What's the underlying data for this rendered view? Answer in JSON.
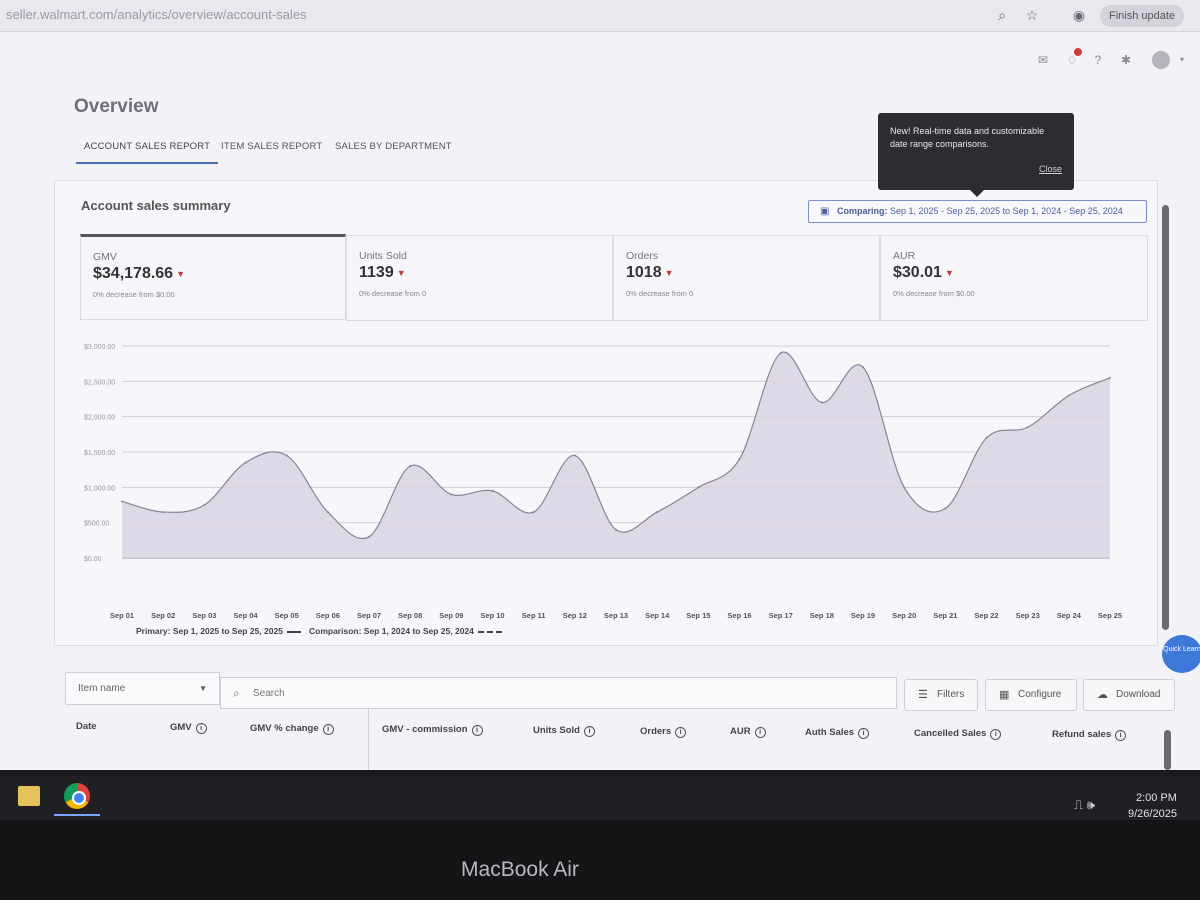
{
  "browser": {
    "url": "seller.walmart.com/analytics/overview/account-sales",
    "finish_update": "Finish update"
  },
  "page": {
    "title": "Overview",
    "tabs": [
      "ACCOUNT SALES REPORT",
      "ITEM SALES REPORT",
      "SALES BY DEPARTMENT"
    ]
  },
  "tooltip": {
    "text": "New! Real-time data and customizable date range comparisons.",
    "close": "Close"
  },
  "summary": {
    "title": "Account sales summary",
    "comparing_label": "Comparing:",
    "comparing_range": "Sep 1, 2025 - Sep 25, 2025",
    "to": "to",
    "comparison_range": "Sep 1, 2024 - Sep 25, 2024"
  },
  "kpis": [
    {
      "label": "GMV",
      "value": "$34,178.66",
      "note": "0% decrease from $0.00"
    },
    {
      "label": "Units Sold",
      "value": "1139",
      "note": "0% decrease from 0"
    },
    {
      "label": "Orders",
      "value": "1018",
      "note": "0% decrease from 0"
    },
    {
      "label": "AUR",
      "value": "$30.01",
      "note": "0% decrease from $0.00"
    }
  ],
  "chart_data": {
    "type": "area",
    "categories": [
      "Sep 01",
      "Sep 02",
      "Sep 03",
      "Sep 04",
      "Sep 05",
      "Sep 06",
      "Sep 07",
      "Sep 08",
      "Sep 09",
      "Sep 10",
      "Sep 11",
      "Sep 12",
      "Sep 13",
      "Sep 14",
      "Sep 15",
      "Sep 16",
      "Sep 17",
      "Sep 18",
      "Sep 19",
      "Sep 20",
      "Sep 21",
      "Sep 22",
      "Sep 23",
      "Sep 24",
      "Sep 25"
    ],
    "y_ticks": [
      "$3,000.00",
      "$2,500.00",
      "$2,000.00",
      "$1,500.00",
      "$1,000.00",
      "$500.00",
      "$0.00"
    ],
    "ylim": [
      0,
      3000
    ],
    "series": [
      {
        "name": "Primary: Sep 1, 2025 to Sep 25, 2025",
        "values": [
          800,
          650,
          750,
          1350,
          1450,
          650,
          300,
          1300,
          900,
          950,
          650,
          1450,
          400,
          650,
          1000,
          1400,
          2900,
          2200,
          2700,
          1000,
          700,
          1700,
          1850,
          2300,
          2550
        ]
      }
    ],
    "legend": {
      "primary": "Primary: Sep 1, 2025 to Sep 25, 2025",
      "comparison": "Comparison: Sep 1, 2024 to Sep 25, 2024"
    },
    "grid": true,
    "colors": {
      "fill": "#d9d3e2",
      "line": "#8a8394"
    }
  },
  "table": {
    "item_select": "Item name",
    "search_placeholder": "Search",
    "buttons": {
      "filters": "Filters",
      "configure": "Configure",
      "download": "Download"
    },
    "columns": [
      "Date",
      "GMV",
      "GMV % change",
      "GMV - commission",
      "Units Sold",
      "Orders",
      "AUR",
      "Auth Sales",
      "Cancelled Sales",
      "Refund sales"
    ]
  },
  "quick_learn": "Quick Learn",
  "taskbar": {
    "time": "2:00 PM",
    "date": "9/26/2025"
  },
  "device_label": "MacBook Air"
}
